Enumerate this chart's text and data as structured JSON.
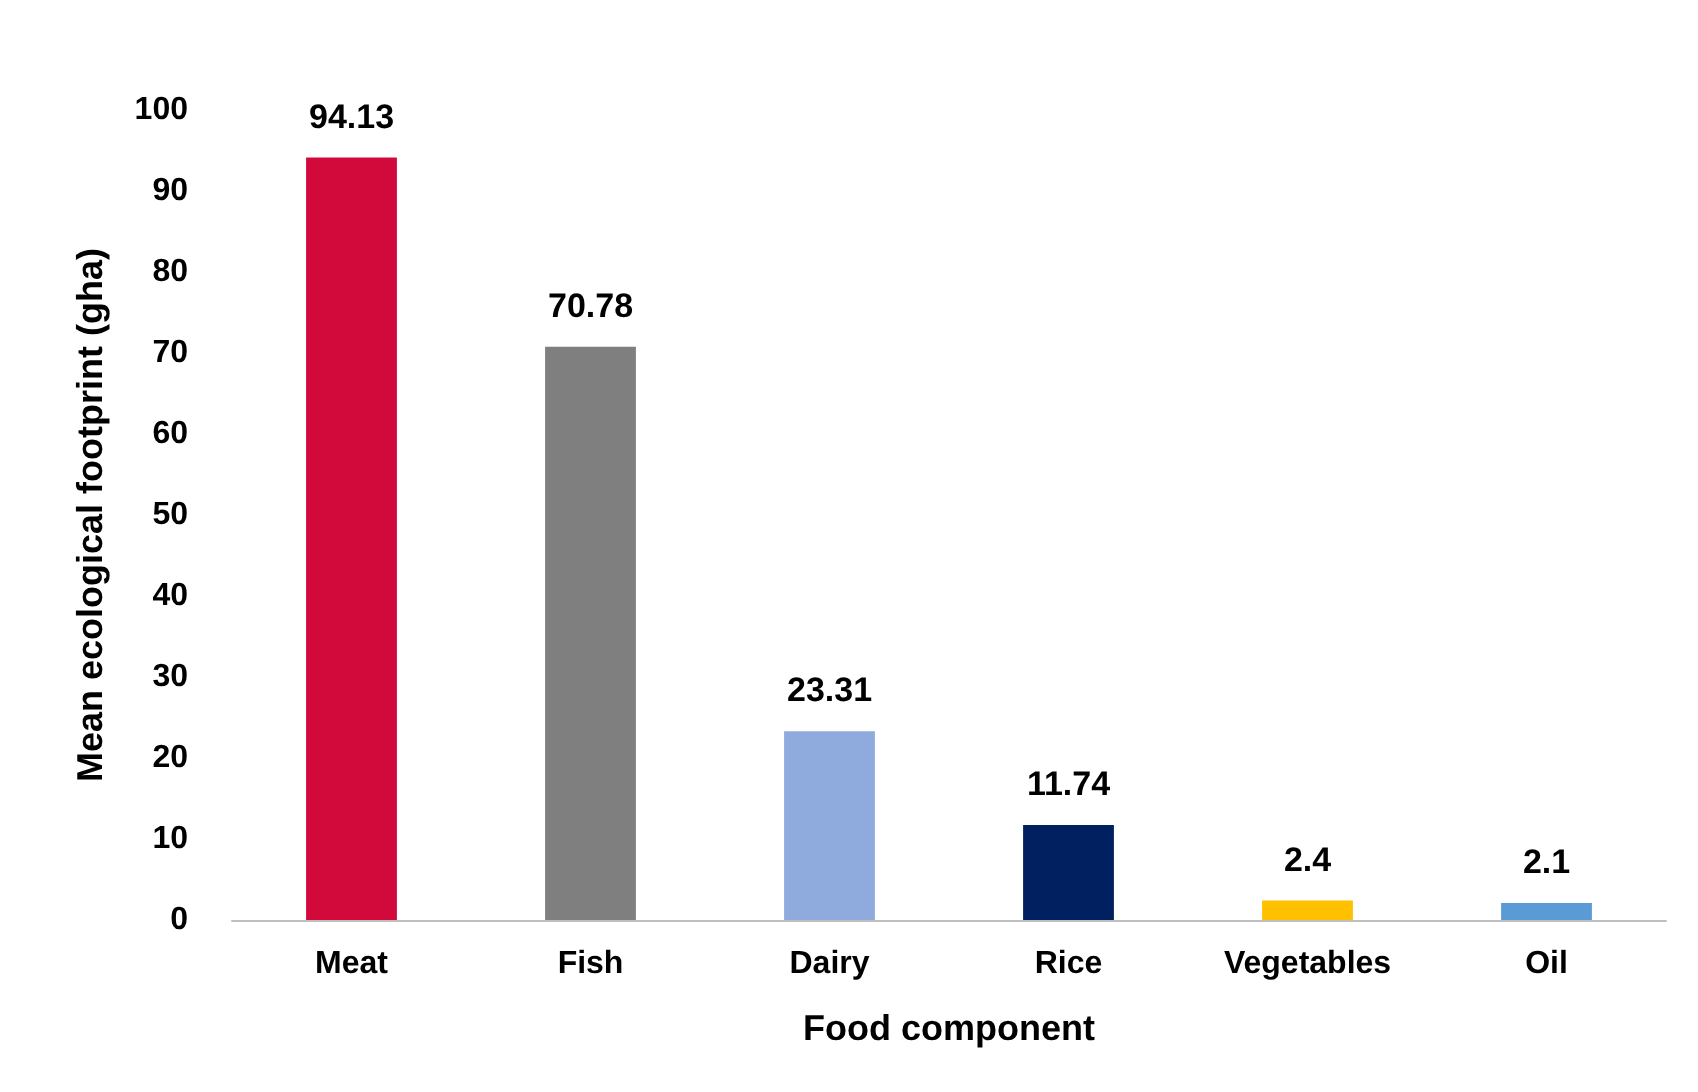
{
  "chart_data": {
    "type": "bar",
    "xlabel": "Food component",
    "ylabel": "Mean ecological footprint (gha)",
    "categories": [
      "Meat",
      "Fish",
      "Dairy",
      "Rice",
      "Vegetables",
      "Oil"
    ],
    "values": [
      94.13,
      70.78,
      23.31,
      11.74,
      2.4,
      2.1
    ],
    "colors": [
      "#d20a3c",
      "#7f7f7f",
      "#8faadc",
      "#002060",
      "#ffc000",
      "#5b9bd5"
    ],
    "ylim": [
      0,
      100
    ],
    "yticks": [
      0,
      10,
      20,
      30,
      40,
      50,
      60,
      70,
      80,
      90,
      100
    ],
    "grid": false,
    "data_labels": true
  }
}
